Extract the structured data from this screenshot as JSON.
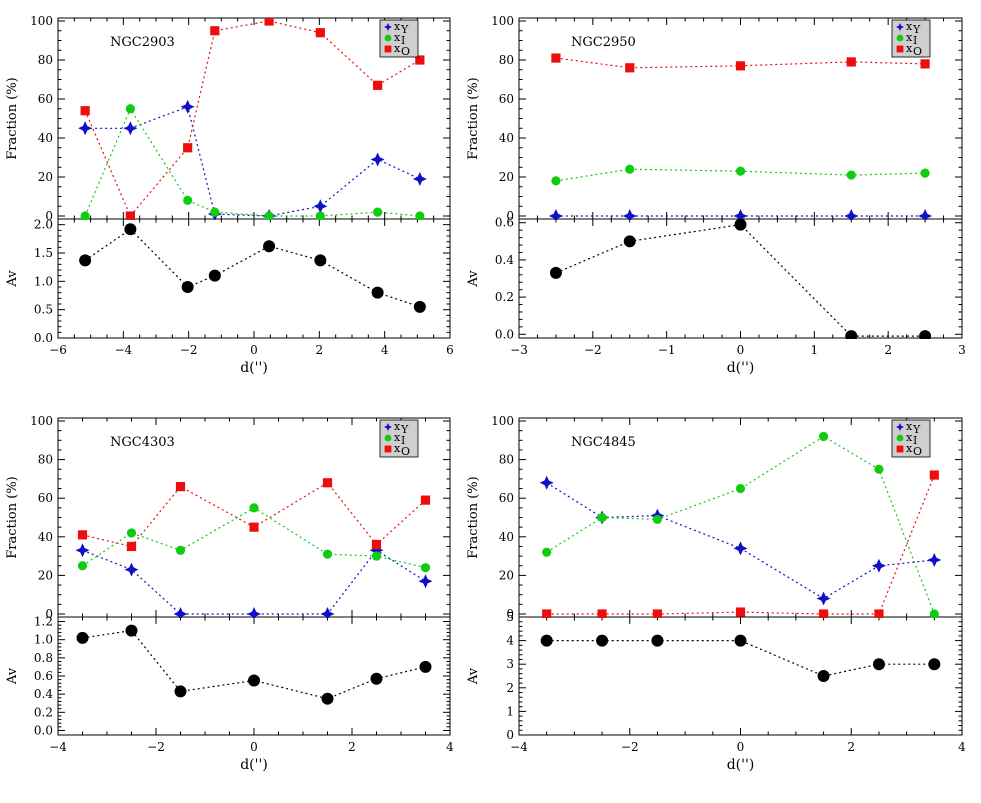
{
  "colors": {
    "young": "#1010c8",
    "intermediate": "#10cc10",
    "old": "#ee0d0d",
    "av": "#000000",
    "legend_bg": "#cfcfcf"
  },
  "legend": {
    "young_label": "x",
    "young_sub": "Y",
    "intermediate_label": "x",
    "intermediate_sub": "I",
    "old_label": "x",
    "old_sub": "O"
  },
  "chart_data": [
    {
      "type": "line",
      "galaxy": "NGC2903",
      "top_ylabel": "Fraction (%)",
      "bottom_ylabel": "Av",
      "xlabel": "d('')",
      "xlim": [
        -7,
        6
      ],
      "xticks": [
        "−6",
        "−4",
        "−2",
        "0",
        "2",
        "4",
        "6"
      ],
      "top_ylim": [
        0,
        100
      ],
      "top_yticks": [
        "0",
        "20",
        "40",
        "60",
        "80",
        "100"
      ],
      "bottom_ylim": [
        0,
        2.1
      ],
      "bottom_yticks": [
        "0.0",
        "0.5",
        "1.0",
        "1.5",
        "2.0"
      ],
      "x": [
        -6.1,
        -4.6,
        -2.7,
        -1.8,
        0,
        1.7,
        3.6,
        5
      ],
      "series": [
        {
          "name": "x_Y",
          "values": [
            45,
            45,
            56,
            1,
            0,
            5,
            29,
            19
          ]
        },
        {
          "name": "x_I",
          "values": [
            0,
            55,
            8,
            2,
            0,
            0,
            2,
            0
          ]
        },
        {
          "name": "x_O",
          "values": [
            54,
            0,
            35,
            95,
            100,
            94,
            67,
            80
          ]
        }
      ],
      "av": [
        1.37,
        1.92,
        0.9,
        1.1,
        1.62,
        1.37,
        0.8,
        0.55
      ]
    },
    {
      "type": "line",
      "galaxy": "NGC2950",
      "top_ylabel": "Fraction (%)",
      "bottom_ylabel": "Av",
      "xlabel": "d('')",
      "xlim": [
        -3,
        3
      ],
      "xticks": [
        "−3",
        "−2",
        "−1",
        "0",
        "1",
        "2",
        "3"
      ],
      "top_ylim": [
        0,
        100
      ],
      "top_yticks": [
        "0",
        "20",
        "40",
        "60",
        "80",
        "100"
      ],
      "bottom_ylim": [
        -0.02,
        0.62
      ],
      "bottom_yticks": [
        "0.0",
        "0.2",
        "0.4",
        "0.6"
      ],
      "x": [
        -2.5,
        -1.5,
        0,
        1.5,
        2.5
      ],
      "series": [
        {
          "name": "x_Y",
          "values": [
            0,
            0,
            0,
            0,
            0
          ]
        },
        {
          "name": "x_I",
          "values": [
            18,
            24,
            23,
            21,
            22
          ]
        },
        {
          "name": "x_O",
          "values": [
            81,
            76,
            77,
            79,
            78
          ]
        }
      ],
      "av": [
        0.33,
        0.5,
        0.59,
        -0.01,
        -0.01
      ]
    },
    {
      "type": "line",
      "galaxy": "NGC4303",
      "top_ylabel": "Fraction (%)",
      "bottom_ylabel": "Av",
      "xlabel": "d('')",
      "xlim": [
        -4,
        4
      ],
      "xticks": [
        "−4",
        "−2",
        "0",
        "2",
        "4"
      ],
      "top_ylim": [
        0,
        100
      ],
      "top_yticks": [
        "0",
        "20",
        "40",
        "60",
        "80",
        "100"
      ],
      "bottom_ylim": [
        -0.05,
        1.25
      ],
      "bottom_yticks": [
        "0.0",
        "0.2",
        "0.4",
        "0.6",
        "0.8",
        "1.0",
        "1.2"
      ],
      "x": [
        -3.5,
        -2.5,
        -1.5,
        0,
        1.5,
        2.5,
        3.5
      ],
      "series": [
        {
          "name": "x_Y",
          "values": [
            33,
            23,
            0,
            0,
            0,
            33,
            17
          ]
        },
        {
          "name": "x_I",
          "values": [
            25,
            42,
            33,
            55,
            31,
            30,
            24
          ]
        },
        {
          "name": "x_O",
          "values": [
            41,
            35,
            66,
            45,
            68,
            36,
            59
          ]
        }
      ],
      "av": [
        1.02,
        1.1,
        0.43,
        0.55,
        0.35,
        0.57,
        0.7
      ]
    },
    {
      "type": "line",
      "galaxy": "NGC4845",
      "top_ylabel": "Fraction (%)",
      "bottom_ylabel": "Av",
      "xlabel": "d('')",
      "xlim": [
        -4,
        4
      ],
      "xticks": [
        "−4",
        "−2",
        "0",
        "2",
        "4"
      ],
      "top_ylim": [
        0,
        100
      ],
      "top_yticks": [
        "0",
        "20",
        "40",
        "60",
        "80",
        "100"
      ],
      "bottom_ylim": [
        0,
        5
      ],
      "bottom_yticks": [
        "0",
        "1",
        "2",
        "3",
        "4",
        "5"
      ],
      "x": [
        -3.5,
        -2.5,
        -1.5,
        0,
        1.5,
        2.5,
        3.5
      ],
      "series": [
        {
          "name": "x_Y",
          "values": [
            68,
            50,
            51,
            34,
            8,
            25,
            28
          ]
        },
        {
          "name": "x_I",
          "values": [
            32,
            50,
            49,
            65,
            92,
            75,
            0
          ]
        },
        {
          "name": "x_O",
          "values": [
            0,
            0,
            0,
            1,
            0,
            0,
            72
          ]
        }
      ],
      "av": [
        4,
        4,
        4,
        4,
        2.5,
        3,
        3
      ]
    }
  ]
}
